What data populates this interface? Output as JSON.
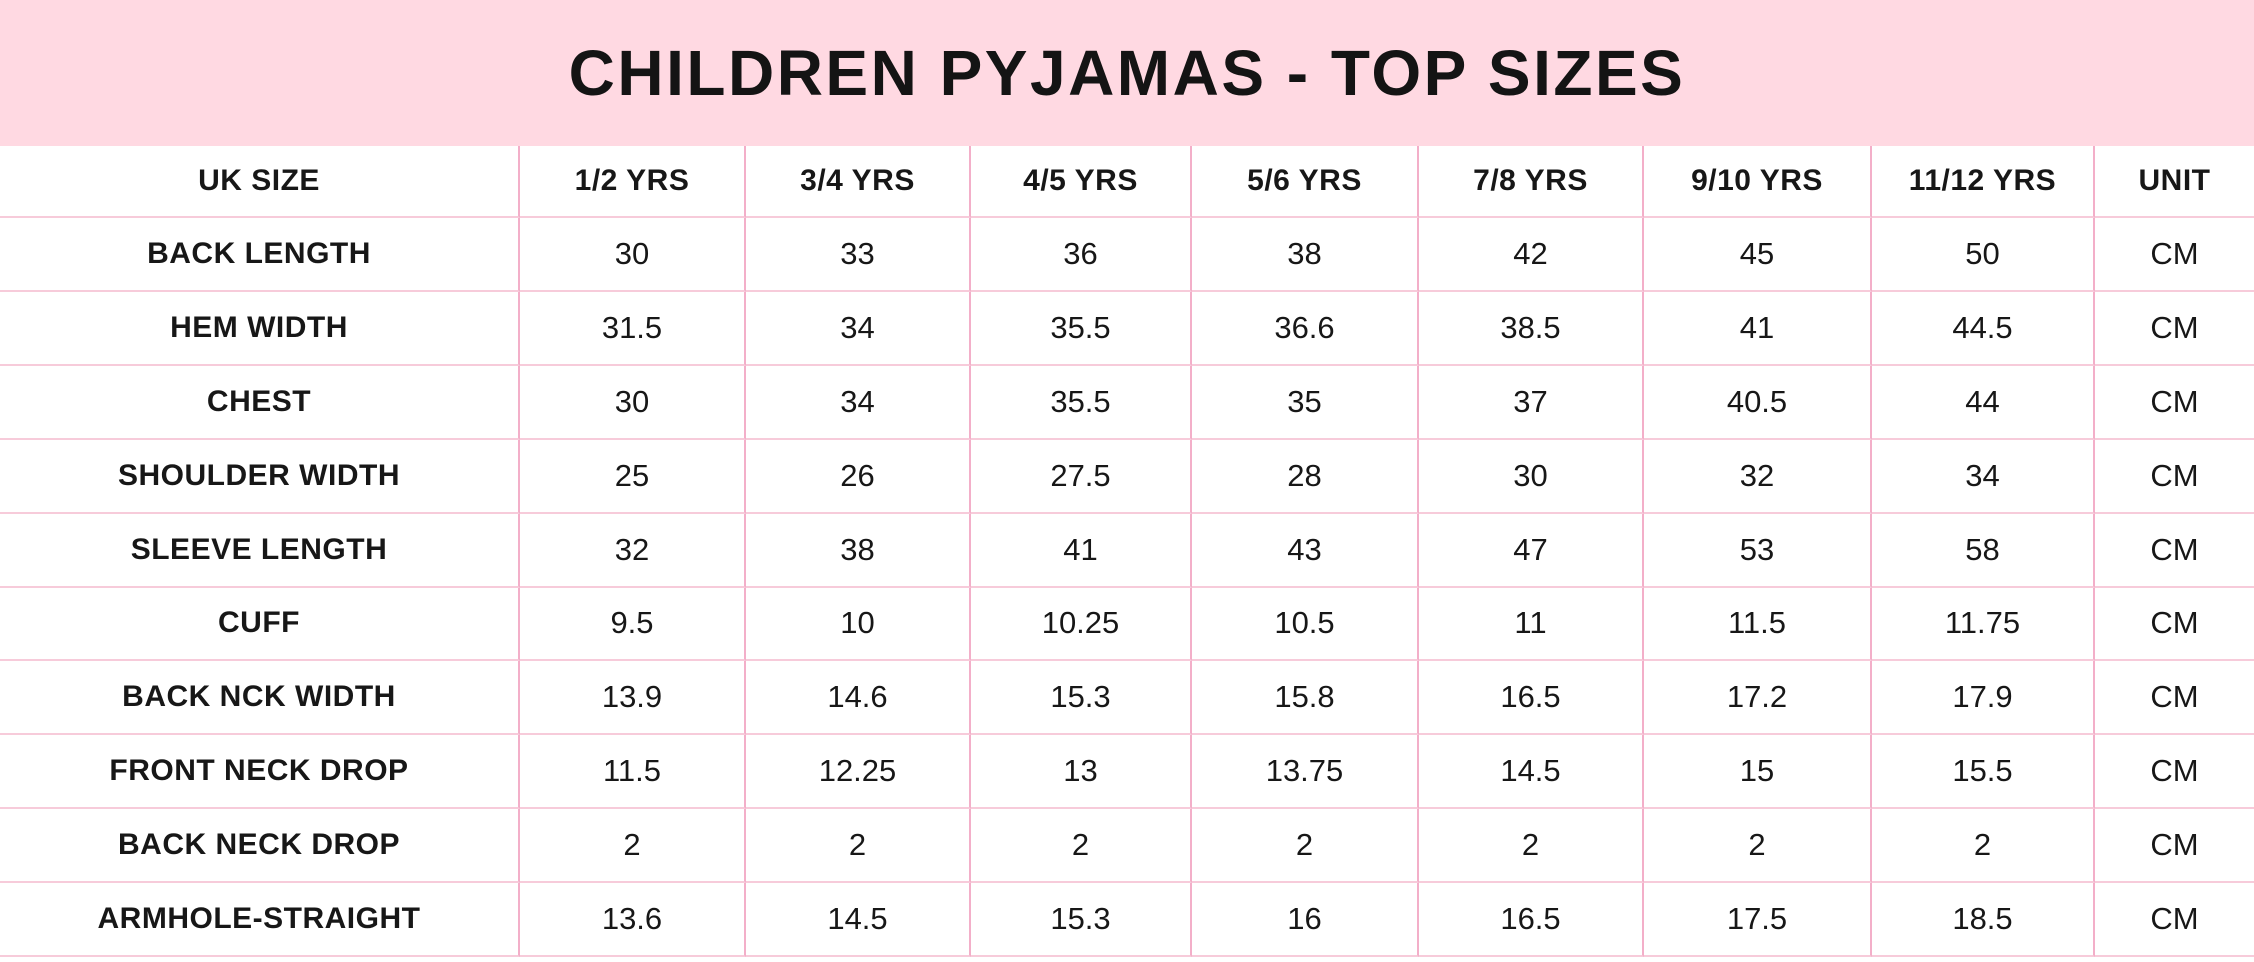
{
  "chart_data": {
    "type": "table",
    "title": "CHILDREN PYJAMAS - TOP SIZES",
    "columns": [
      "UK SIZE",
      "1/2 YRS",
      "3/4 YRS",
      "4/5 YRS",
      "5/6 YRS",
      "7/8 YRS",
      "9/10 YRS",
      "11/12 YRS",
      "UNIT"
    ],
    "rows": [
      {
        "label": "BACK LENGTH",
        "values": [
          "30",
          "33",
          "36",
          "38",
          "42",
          "45",
          "50"
        ],
        "unit": "CM"
      },
      {
        "label": "HEM WIDTH",
        "values": [
          "31.5",
          "34",
          "35.5",
          "36.6",
          "38.5",
          "41",
          "44.5"
        ],
        "unit": "CM"
      },
      {
        "label": "CHEST",
        "values": [
          "30",
          "34",
          "35.5",
          "35",
          "37",
          "40.5",
          "44"
        ],
        "unit": "CM"
      },
      {
        "label": "SHOULDER WIDTH",
        "values": [
          "25",
          "26",
          "27.5",
          "28",
          "30",
          "32",
          "34"
        ],
        "unit": "CM"
      },
      {
        "label": "SLEEVE LENGTH",
        "values": [
          "32",
          "38",
          "41",
          "43",
          "47",
          "53",
          "58"
        ],
        "unit": "CM"
      },
      {
        "label": "CUFF",
        "values": [
          "9.5",
          "10",
          "10.25",
          "10.5",
          "11",
          "11.5",
          "11.75"
        ],
        "unit": "CM"
      },
      {
        "label": "BACK NCK WIDTH",
        "values": [
          "13.9",
          "14.6",
          "15.3",
          "15.8",
          "16.5",
          "17.2",
          "17.9"
        ],
        "unit": "CM"
      },
      {
        "label": "FRONT NECK DROP",
        "values": [
          "11.5",
          "12.25",
          "13",
          "13.75",
          "14.5",
          "15",
          "15.5"
        ],
        "unit": "CM"
      },
      {
        "label": "BACK NECK DROP",
        "values": [
          "2",
          "2",
          "2",
          "2",
          "2",
          "2",
          "2"
        ],
        "unit": "CM"
      },
      {
        "label": "ARMHOLE-STRAIGHT",
        "values": [
          "13.6",
          "14.5",
          "15.3",
          "16",
          "16.5",
          "17.5",
          "18.5"
        ],
        "unit": "CM"
      }
    ]
  },
  "colors": {
    "title_band_bg": "#FFD9E2",
    "grid_line_vertical": "#F3AFC9",
    "grid_line_horizontal": "#F7CBDA",
    "text": "#171717",
    "background": "#FFFFFF"
  }
}
